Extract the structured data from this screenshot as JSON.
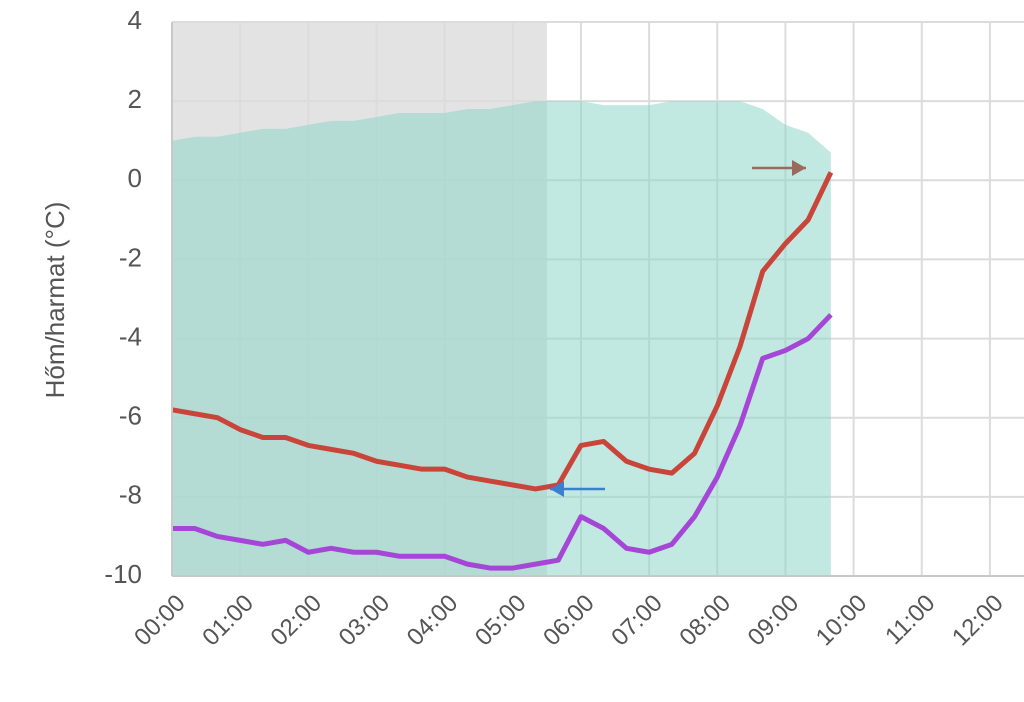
{
  "chart_data": {
    "type": "line",
    "y_label": "Hőm/harmat (°C)",
    "x": [
      "00:00",
      "00:20",
      "00:40",
      "01:00",
      "01:20",
      "01:40",
      "02:00",
      "02:20",
      "02:40",
      "03:00",
      "03:20",
      "03:40",
      "04:00",
      "04:20",
      "04:40",
      "05:00",
      "05:20",
      "05:40",
      "06:00",
      "06:20",
      "06:40",
      "07:00",
      "07:20",
      "07:40",
      "08:00",
      "08:20",
      "08:40",
      "09:00",
      "09:20",
      "09:40"
    ],
    "series": [
      {
        "color": "#c9453a",
        "values": [
          -5.8,
          -5.9,
          -6.0,
          -6.3,
          -6.5,
          -6.5,
          -6.7,
          -6.8,
          -6.9,
          -7.1,
          -7.2,
          -7.3,
          -7.3,
          -7.5,
          -7.6,
          -7.7,
          -7.8,
          -7.7,
          -6.7,
          -6.6,
          -7.1,
          -7.3,
          -7.4,
          -6.9,
          -5.7,
          -4.2,
          -2.3,
          -1.6,
          -1.0,
          0.2
        ]
      },
      {
        "color": "#a646d6",
        "values": [
          -8.8,
          -8.8,
          -9.0,
          -9.1,
          -9.2,
          -9.1,
          -9.4,
          -9.3,
          -9.4,
          -9.4,
          -9.5,
          -9.5,
          -9.5,
          -9.7,
          -9.8,
          -9.8,
          -9.7,
          -9.6,
          -8.5,
          -8.8,
          -9.3,
          -9.4,
          -9.2,
          -8.5,
          -7.5,
          -6.2,
          -4.5,
          -4.3,
          -4.0,
          -3.4
        ]
      },
      {
        "type": "area",
        "color": "#8fd6cb",
        "values": [
          1.0,
          1.1,
          1.1,
          1.2,
          1.3,
          1.3,
          1.4,
          1.5,
          1.5,
          1.6,
          1.7,
          1.7,
          1.7,
          1.8,
          1.8,
          1.9,
          2.0,
          2.0,
          2.0,
          1.9,
          1.9,
          1.9,
          2.0,
          2.0,
          2.0,
          2.0,
          1.8,
          1.4,
          1.2,
          0.7
        ]
      }
    ],
    "night": [
      "00:00",
      "05:30"
    ],
    "night_color": "#e3e3e3",
    "xlim": [
      "00:00",
      "12:30"
    ],
    "xticks": [
      "00:00",
      "01:00",
      "02:00",
      "03:00",
      "04:00",
      "05:00",
      "06:00",
      "07:00",
      "08:00",
      "09:00",
      "10:00",
      "11:00",
      "12:00"
    ],
    "ylim": [
      -10,
      4
    ],
    "yticks": [
      -10,
      -8,
      -6,
      -4,
      -2,
      0,
      2,
      4
    ],
    "grid": true
  }
}
